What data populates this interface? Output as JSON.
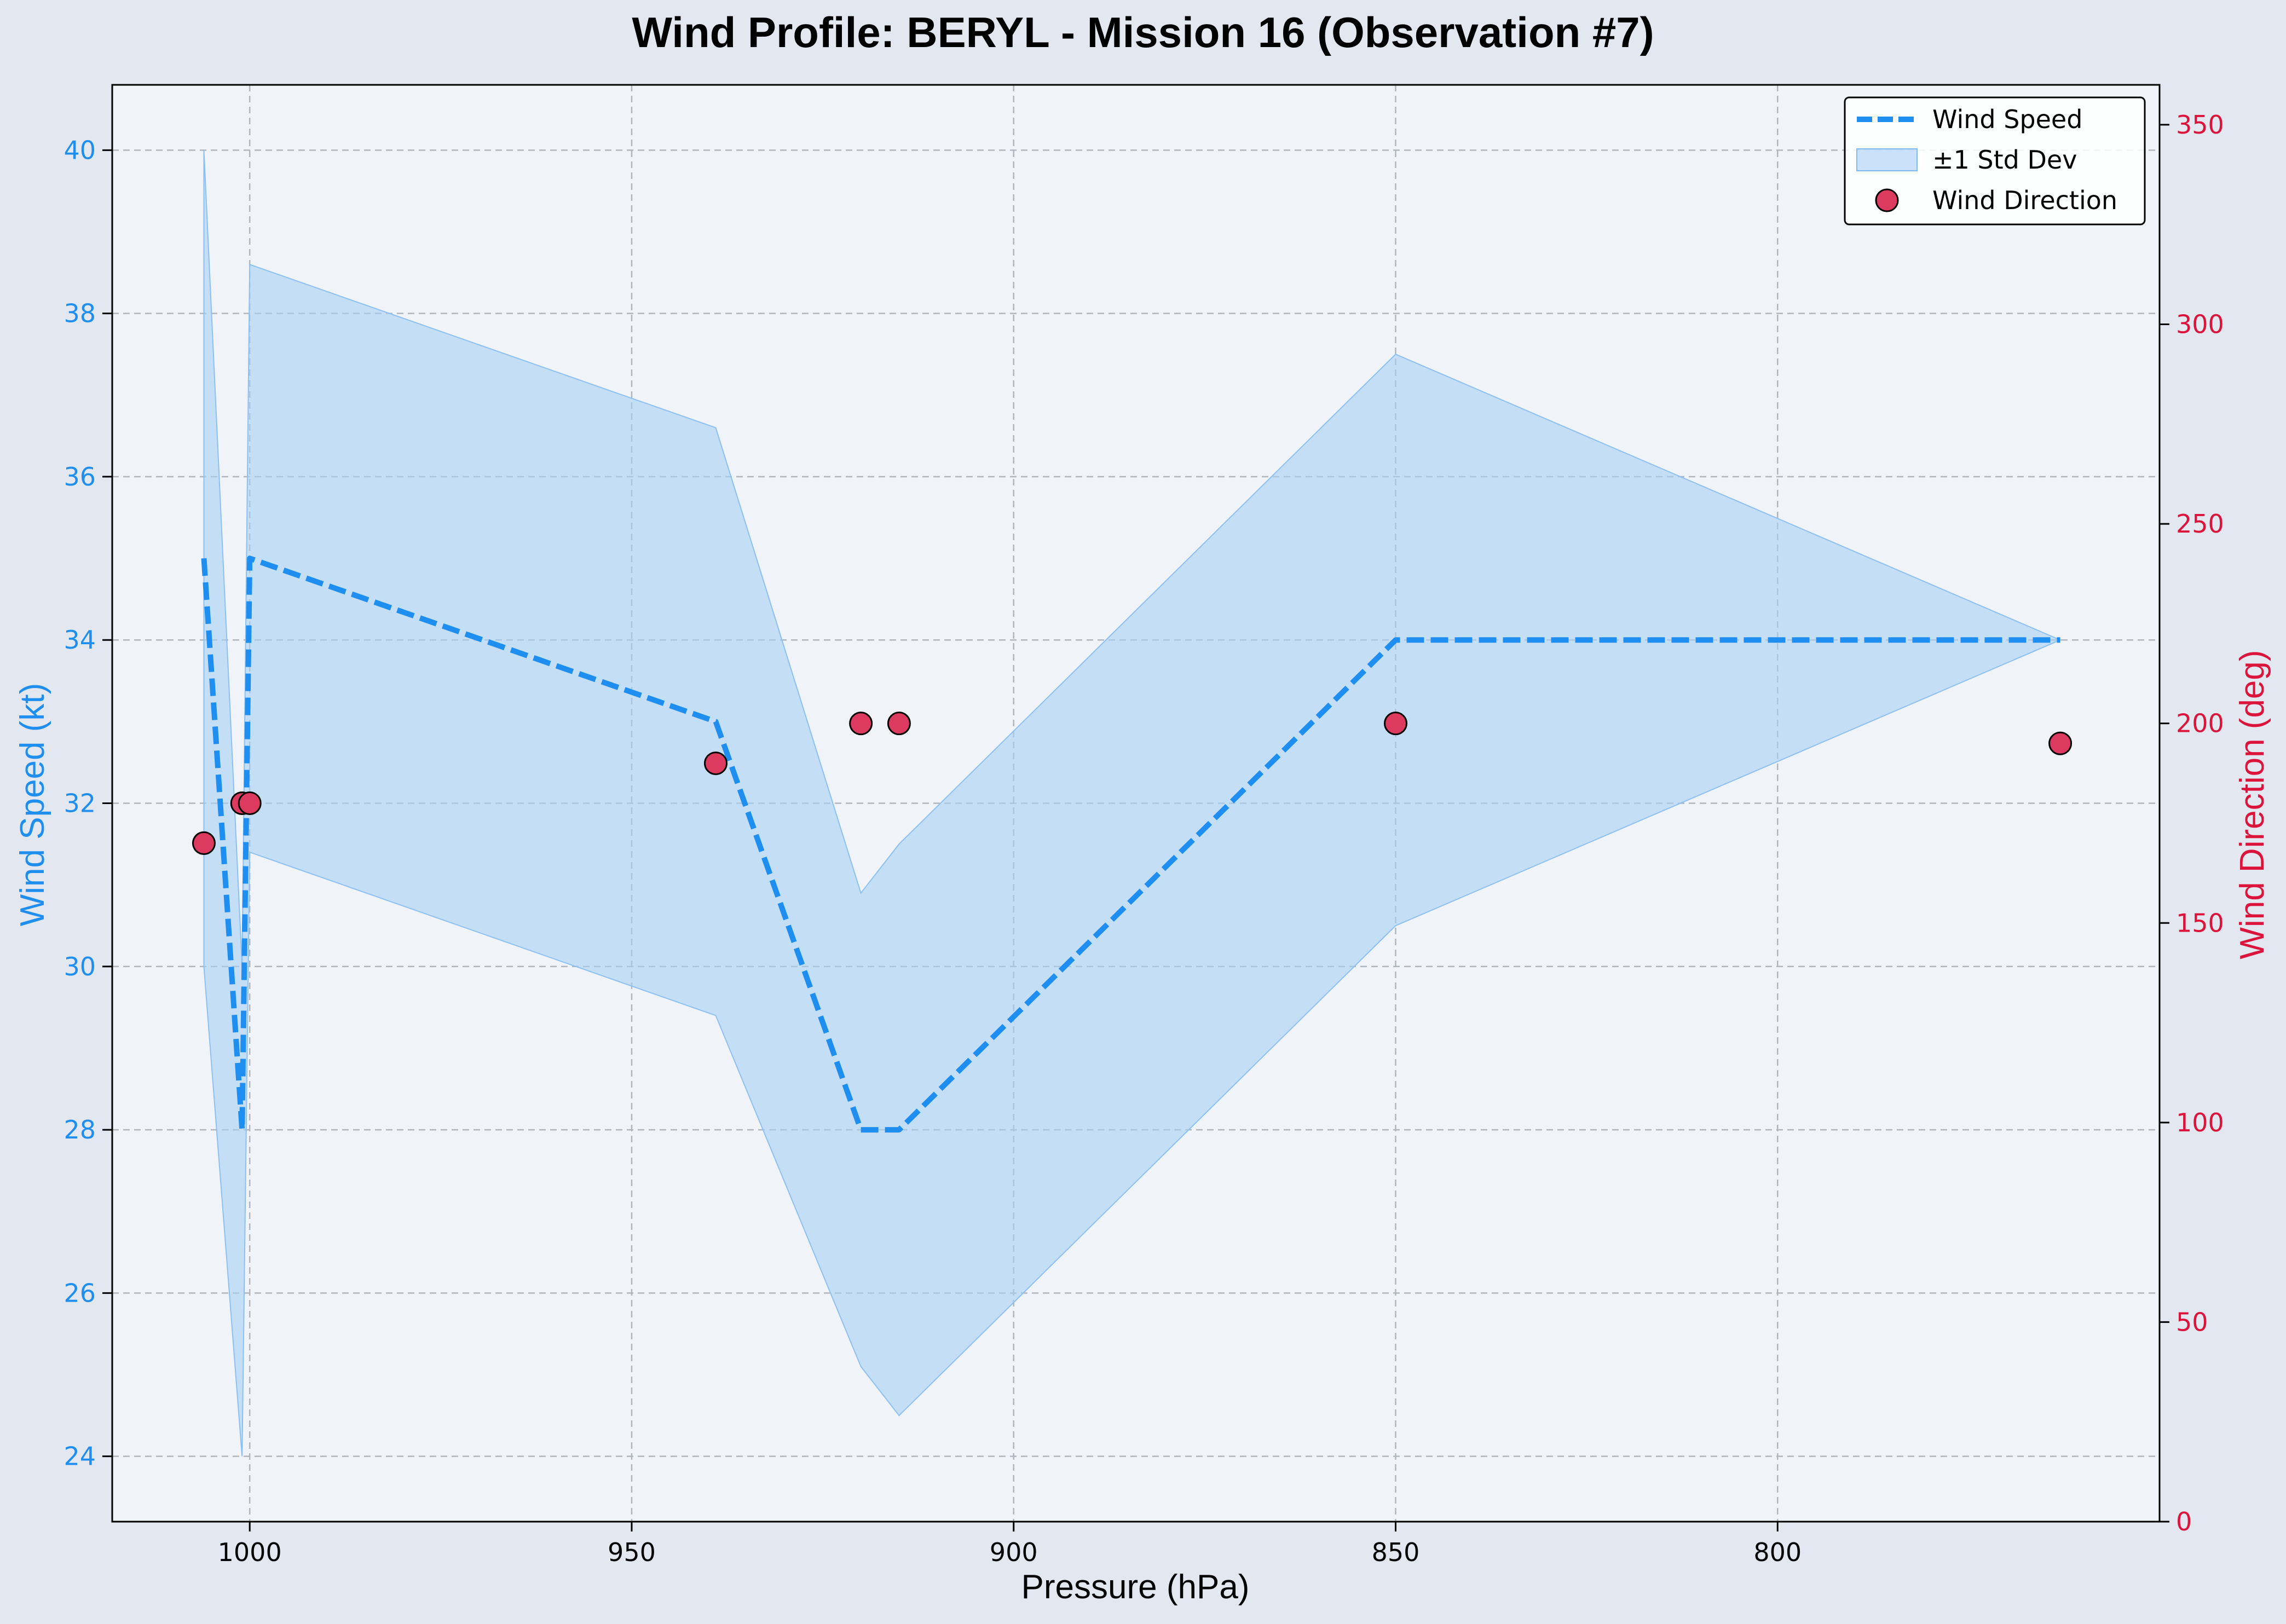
{
  "chart_data": {
    "type": "line",
    "title": "Wind Profile: BERYL - Mission 16 (Observation #7)",
    "xlabel": "Pressure (hPa)",
    "ylabel_left": "Wind Speed (kt)",
    "ylabel_right": "Wind Direction (deg)",
    "x_inverted": true,
    "xlim": [
      1018,
      750
    ],
    "ylim_left": [
      23.2,
      40.8
    ],
    "ylim_right": [
      0,
      360
    ],
    "x_ticks": [
      1000,
      950,
      900,
      850,
      800
    ],
    "y_ticks_left": [
      24,
      26,
      28,
      30,
      32,
      34,
      36,
      38,
      40
    ],
    "y_ticks_right": [
      0,
      50,
      100,
      150,
      200,
      250,
      300,
      350
    ],
    "grid": true,
    "legend_position": "top-right",
    "colors": {
      "speed": "#1f8ef1",
      "band": "#a7cff5",
      "direction": "#dc3a5e",
      "left_axis": "#1f8ef1",
      "right_axis": "#dc143c",
      "plot_bg": "#f0f4f8"
    },
    "series": [
      {
        "name": "Wind Speed",
        "style": "dashed-line",
        "x": [
          1006,
          1001,
          1000,
          939,
          920,
          915,
          850,
          763
        ],
        "values": [
          35,
          28,
          35,
          33,
          28,
          28,
          34,
          34
        ]
      },
      {
        "name": "±1 Std Dev",
        "style": "band",
        "x": [
          1006,
          1001,
          1000,
          939,
          920,
          915,
          850,
          763
        ],
        "upper": [
          40,
          30,
          38.6,
          36.6,
          30.9,
          31.5,
          37.5,
          34
        ],
        "lower": [
          30,
          24,
          31.4,
          29.4,
          25.1,
          24.5,
          30.5,
          34
        ]
      },
      {
        "name": "Wind Direction",
        "style": "scatter",
        "axis": "right",
        "x": [
          1006,
          1001,
          1000,
          939,
          920,
          915,
          850,
          763
        ],
        "values": [
          170,
          180,
          180,
          190,
          200,
          200,
          200,
          195
        ]
      }
    ]
  }
}
